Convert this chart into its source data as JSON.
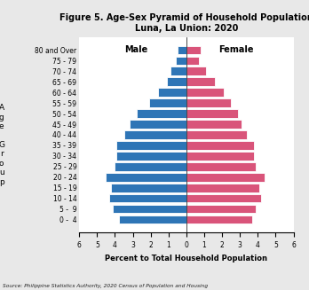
{
  "title": "Figure 5. Age-Sex Pyramid of Household Population\nLuna, La Union: 2020",
  "xlabel": "Percent to Total Household Population",
  "age_groups": [
    "0 -  4",
    "5 -  9",
    "10 - 14",
    "15 - 19",
    "20 - 24",
    "25 - 29",
    "30 - 34",
    "35 - 39",
    "40 - 44",
    "45 - 49",
    "50 - 54",
    "55 - 59",
    "60 - 64",
    "65 - 69",
    "70 - 74",
    "75 - 79",
    "80 and Over"
  ],
  "male": [
    3.8,
    4.1,
    4.3,
    4.2,
    4.5,
    4.0,
    3.9,
    3.9,
    3.5,
    3.2,
    2.8,
    2.1,
    1.6,
    1.1,
    0.9,
    0.6,
    0.5
  ],
  "female": [
    3.7,
    3.9,
    4.2,
    4.1,
    4.4,
    3.9,
    3.8,
    3.8,
    3.4,
    3.1,
    2.9,
    2.5,
    2.1,
    1.6,
    1.1,
    0.7,
    0.8
  ],
  "male_color": "#2E75B6",
  "female_color": "#D9547A",
  "bar_edge_color": "white",
  "xlim": 6,
  "source_text": "Source: Philippine Statistics Authority, 2020 Census of Population and Housing",
  "male_label": "Male",
  "female_label": "Female",
  "fig_bg_color": "#e8e8e8",
  "plot_bg_color": "#ffffff"
}
